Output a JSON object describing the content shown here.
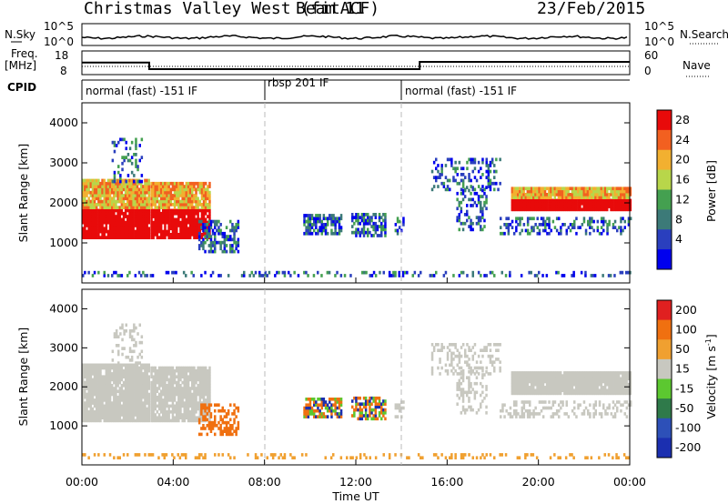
{
  "header": {
    "title": "Christmas Valley West (fitACF)",
    "beam": "Beam 11",
    "date": "23/Feb/2015"
  },
  "top_panels": {
    "nsky_label": "N.Sky",
    "nsearch_label": "N.Search",
    "noise_ticks": [
      "10^5",
      "10^0"
    ],
    "freq_label_1": "Freq.",
    "freq_label_2": "[MHz]",
    "freq_ticks": [
      "18",
      "8"
    ],
    "nave_label": "Nave",
    "nave_ticks": [
      "60",
      "0"
    ],
    "cpid_label": "CPID",
    "cpid_segments": [
      "normal (fast) -151 IF",
      "rbsp 201 IF",
      "normal (fast) -151 IF"
    ]
  },
  "chart_data": [
    {
      "type": "heatmap",
      "name": "power",
      "ylabel": "Slant Range [km]",
      "xlabel": "Time UT",
      "xlim_hours": [
        0,
        24
      ],
      "ylim_km": [
        0,
        4500
      ],
      "yticks": [
        "1000",
        "2000",
        "3000",
        "4000"
      ],
      "colorbar_label": "Power [dB]",
      "colorbar_ticks": [
        "28",
        "24",
        "20",
        "16",
        "12",
        "8",
        "4"
      ],
      "colors": [
        "#0000ee",
        "#2a3fbe",
        "#3c7a78",
        "#44a050",
        "#b8d64a",
        "#f2b030",
        "#f26020",
        "#e80a0a"
      ]
    },
    {
      "type": "heatmap",
      "name": "velocity",
      "ylabel": "Slant Range [km]",
      "xlabel": "Time UT",
      "xlim_hours": [
        0,
        24
      ],
      "ylim_km": [
        0,
        4500
      ],
      "yticks": [
        "1000",
        "2000",
        "3000",
        "4000"
      ],
      "colorbar_label": "Velocity [m s",
      "colorbar_label_sup": "-1",
      "colorbar_label_end": "]",
      "colorbar_ticks": [
        "200",
        "100",
        "50",
        "15",
        "-15",
        "-50",
        "-100",
        "-200"
      ],
      "colors": [
        "#1b2fb0",
        "#2d50b8",
        "#2f7a4a",
        "#5cc830",
        "#c8c8c0",
        "#f0a030",
        "#f07010",
        "#e02020",
        "#e80a0a"
      ]
    }
  ],
  "time_axis": {
    "ticks": [
      "00:00",
      "04:00",
      "08:00",
      "12:00",
      "16:00",
      "20:00",
      "00:00"
    ],
    "label": "Time UT"
  }
}
